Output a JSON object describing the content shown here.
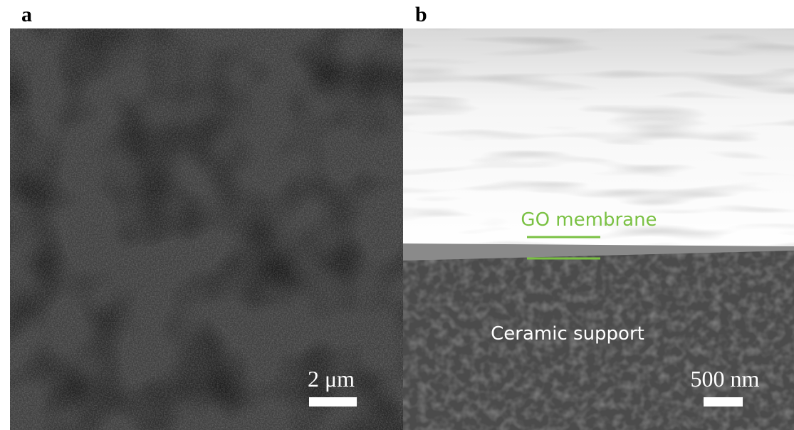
{
  "panels": [
    {
      "label": "a",
      "scale_bar": "2 μm"
    },
    {
      "label": "b",
      "scale_bar": "500 nm",
      "annotations": [
        "GO membrane",
        "Ceramic support"
      ]
    }
  ]
}
